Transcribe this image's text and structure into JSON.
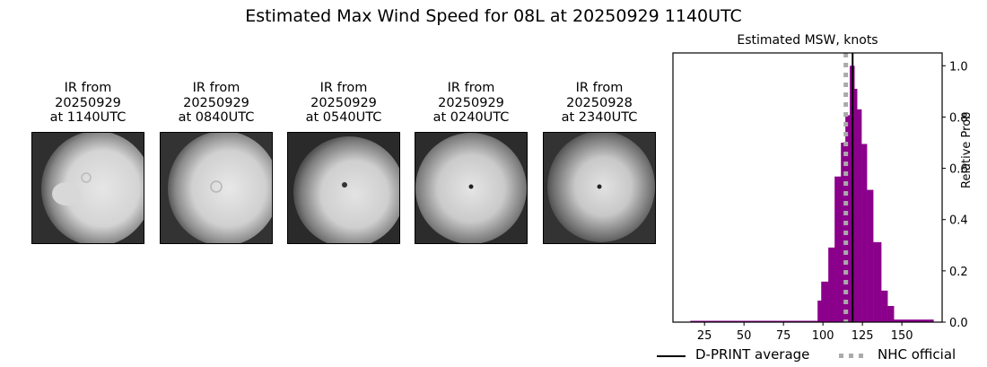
{
  "figure": {
    "title": "Estimated Max Wind Speed for 08L at 20250929 1140UTC"
  },
  "ir_panels": [
    {
      "line1": "IR from",
      "line2": "20250929",
      "line3": "at 1140UTC"
    },
    {
      "line1": "IR from",
      "line2": "20250929",
      "line3": "at 0840UTC"
    },
    {
      "line1": "IR from",
      "line2": "20250929",
      "line3": "at 0540UTC"
    },
    {
      "line1": "IR from",
      "line2": "20250929",
      "line3": "at 0240UTC"
    },
    {
      "line1": "IR from",
      "line2": "20250928",
      "line3": "at 2340UTC"
    }
  ],
  "chart_data": {
    "type": "bar",
    "title": "Estimated MSW, knots",
    "xlabel": "",
    "ylabel": "Relative Prob",
    "xlim": [
      5,
      175.5
    ],
    "ylim": [
      0,
      1.05
    ],
    "xticks": [
      25,
      50,
      75,
      100,
      125,
      150
    ],
    "yticks": [
      0.0,
      0.2,
      0.4,
      0.6,
      0.8,
      1.0
    ],
    "ytick_labels": [
      "0.0",
      "0.2",
      "0.4",
      "0.6",
      "0.8",
      "1.0"
    ],
    "y_axis_side": "right",
    "grid": false,
    "bar_color": "#8b008b",
    "bins": [
      {
        "x0": 16.0,
        "x1": 96.6,
        "value": 0.005
      },
      {
        "x0": 96.6,
        "x1": 98.9,
        "value": 0.084
      },
      {
        "x0": 98.9,
        "x1": 103.4,
        "value": 0.158
      },
      {
        "x0": 103.4,
        "x1": 107.4,
        "value": 0.291
      },
      {
        "x0": 107.4,
        "x1": 111.4,
        "value": 0.568
      },
      {
        "x0": 111.4,
        "x1": 114.2,
        "value": 0.7
      },
      {
        "x0": 114.2,
        "x1": 117.0,
        "value": 0.807
      },
      {
        "x0": 117.0,
        "x1": 119.9,
        "value": 1.0
      },
      {
        "x0": 119.9,
        "x1": 121.6,
        "value": 0.91
      },
      {
        "x0": 121.6,
        "x1": 124.4,
        "value": 0.83
      },
      {
        "x0": 124.4,
        "x1": 127.8,
        "value": 0.695
      },
      {
        "x0": 127.8,
        "x1": 131.8,
        "value": 0.516
      },
      {
        "x0": 131.8,
        "x1": 136.9,
        "value": 0.312
      },
      {
        "x0": 136.9,
        "x1": 140.9,
        "value": 0.123
      },
      {
        "x0": 140.9,
        "x1": 144.9,
        "value": 0.063
      },
      {
        "x0": 144.9,
        "x1": 170.0,
        "value": 0.01
      }
    ],
    "reference_lines": [
      {
        "name": "D-PRINT average",
        "x": 118.8,
        "style": "solid",
        "color": "#000000"
      },
      {
        "name": "NHC official",
        "x": 114.5,
        "style": "dotted",
        "color": "#aaaaaa"
      }
    ],
    "legend": {
      "position": "below",
      "entries": [
        "D-PRINT average",
        "NHC official"
      ]
    }
  }
}
